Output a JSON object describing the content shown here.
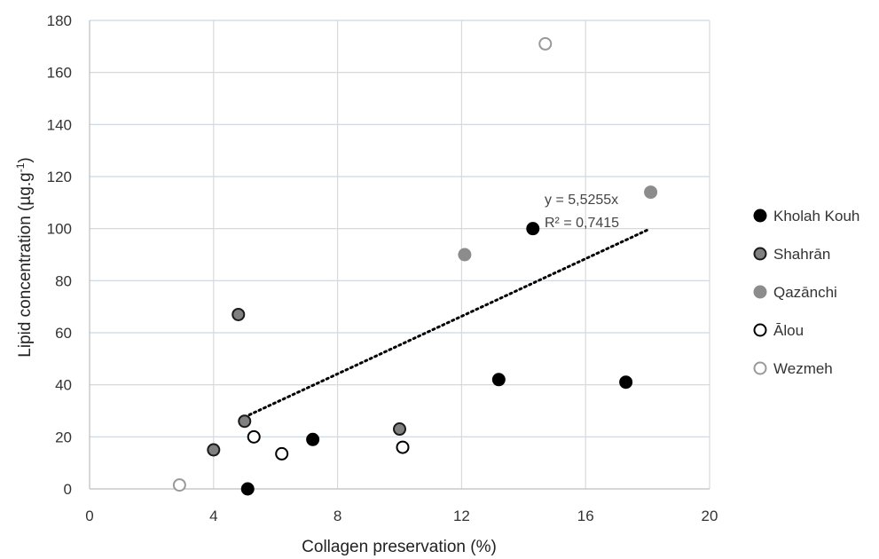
{
  "chart_data": {
    "type": "scatter",
    "title": "",
    "xlabel": "Collagen preservation (%)",
    "ylabel": "Lipid concentration (µg.g",
    "ylabel_superscript": "-1",
    "ylabel_suffix": ")",
    "xlim": [
      0,
      20
    ],
    "ylim": [
      0,
      180
    ],
    "xticks": [
      0,
      4,
      8,
      12,
      16,
      20
    ],
    "yticks": [
      0,
      20,
      40,
      60,
      80,
      100,
      120,
      140,
      160,
      180
    ],
    "grid": true,
    "legend_position": "right",
    "series": [
      {
        "name": "Kholah Kouh",
        "fill": "#000000",
        "stroke": "#000000",
        "points": [
          [
            5.1,
            0
          ],
          [
            7.2,
            19
          ],
          [
            13.2,
            42
          ],
          [
            14.3,
            100
          ],
          [
            17.3,
            41
          ]
        ]
      },
      {
        "name": "Shahrān",
        "fill": "#808080",
        "stroke": "#1a1a1a",
        "points": [
          [
            4.0,
            15
          ],
          [
            4.8,
            67
          ],
          [
            5.0,
            26
          ],
          [
            10.0,
            23
          ]
        ]
      },
      {
        "name": "Qazānchi",
        "fill": "#8c8c8c",
        "stroke": "#8c8c8c",
        "points": [
          [
            12.1,
            90
          ],
          [
            18.1,
            114
          ]
        ]
      },
      {
        "name": "Ālou",
        "fill": "#ffffff",
        "stroke": "#000000",
        "points": [
          [
            5.3,
            20
          ],
          [
            6.2,
            13.5
          ],
          [
            10.1,
            16
          ]
        ]
      },
      {
        "name": "Wezmeh",
        "fill": "#ffffff",
        "stroke": "#999999",
        "points": [
          [
            2.9,
            1.5
          ],
          [
            14.7,
            171
          ]
        ]
      }
    ],
    "trendline": {
      "x": [
        5.0,
        18.0
      ],
      "y": [
        27.6,
        99.5
      ],
      "style": "dotted",
      "color": "#000000"
    },
    "annotations": [
      "y = 5,5255x",
      "R² = 0,7415"
    ]
  }
}
